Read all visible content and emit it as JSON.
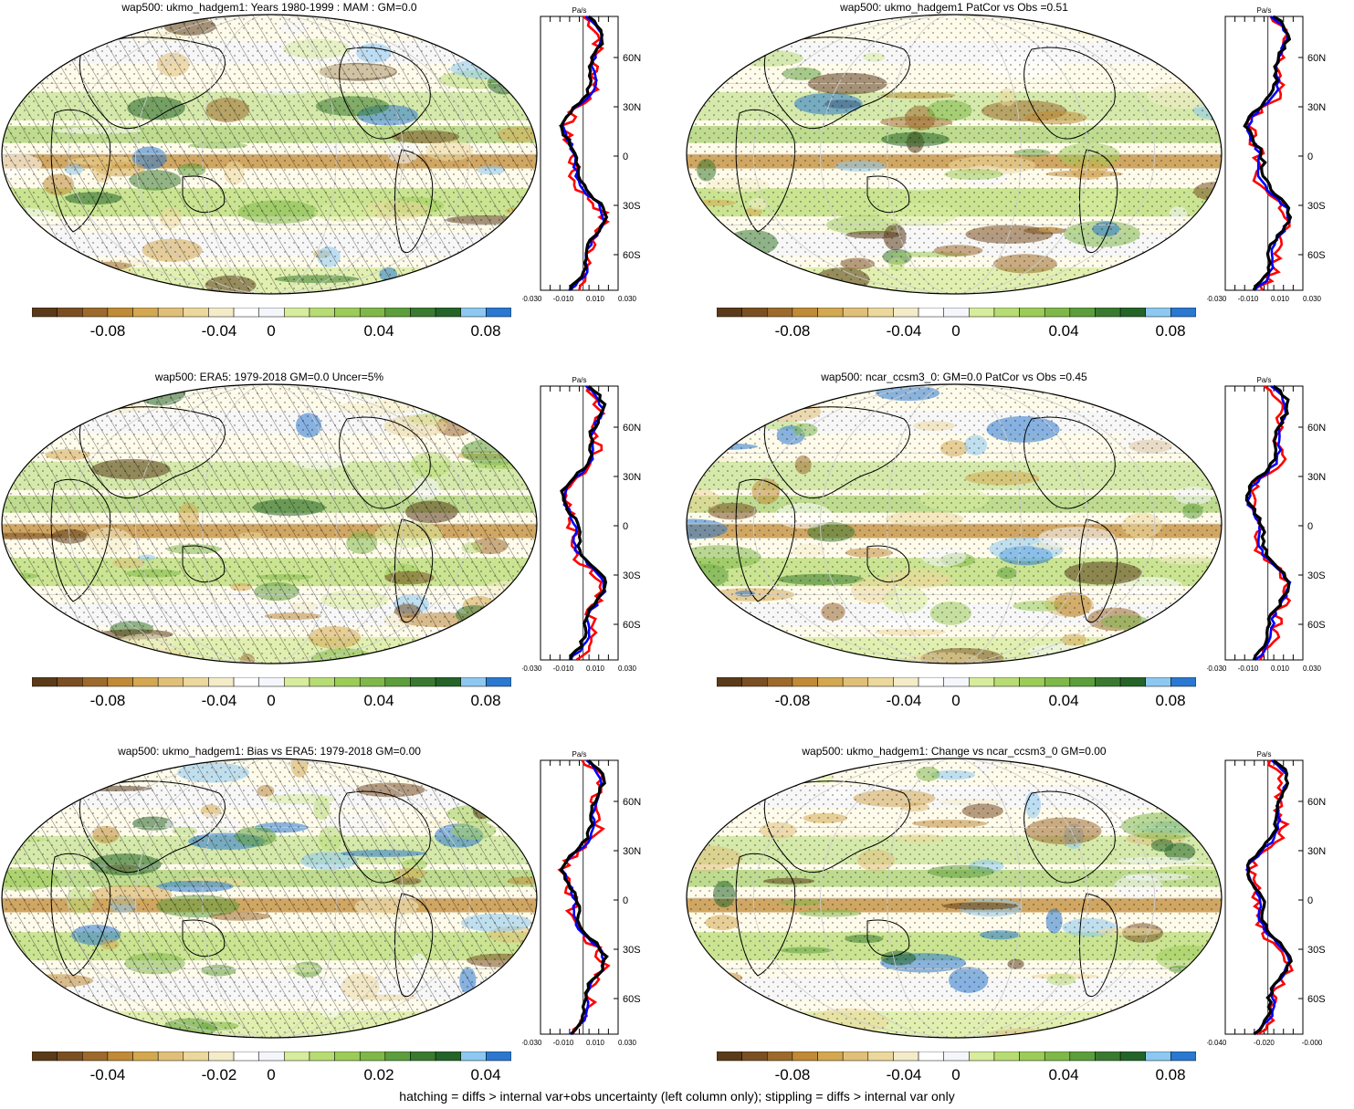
{
  "panels": [
    {
      "title": "wap500: ukmo_hadgem1: Years 1980-1999 : MAM : GM=0.0",
      "colorbar": {
        "labels": [
          "-0.08",
          "-0.04",
          "0",
          "0.04",
          "0.08"
        ]
      },
      "profile": {
        "unit": "Pa/s",
        "xticks": [
          "-0.030",
          "-0.010",
          "0.010",
          "0.030"
        ],
        "lat_labels": [
          "60N",
          "30N",
          "0",
          "30S",
          "60S"
        ]
      },
      "hatched": true
    },
    {
      "title": "wap500: ukmo_hadgem1 PatCor vs Obs =0.51",
      "colorbar": {
        "labels": [
          "-0.08",
          "-0.04",
          "0",
          "0.04",
          "0.08"
        ]
      },
      "profile": {
        "unit": "Pa/s",
        "xticks": [
          "-0.030",
          "-0.010",
          "0.010",
          "0.030"
        ],
        "lat_labels": [
          "60N",
          "30N",
          "0",
          "30S",
          "60S"
        ]
      },
      "hatched": false
    },
    {
      "title": "wap500: ERA5: 1979-2018 GM=0.0 Uncer=5%",
      "colorbar": {
        "labels": [
          "-0.08",
          "-0.04",
          "0",
          "0.04",
          "0.08"
        ]
      },
      "profile": {
        "unit": "Pa/s",
        "xticks": [
          "-0.030",
          "-0.010",
          "0.010",
          "0.030"
        ],
        "lat_labels": [
          "60N",
          "30N",
          "0",
          "30S",
          "60S"
        ]
      },
      "hatched": true
    },
    {
      "title": "wap500: ncar_ccsm3_0: GM=0.0 PatCor vs Obs =0.45",
      "colorbar": {
        "labels": [
          "-0.08",
          "-0.04",
          "0",
          "0.04",
          "0.08"
        ]
      },
      "profile": {
        "unit": "Pa/s",
        "xticks": [
          "-0.030",
          "-0.010",
          "0.010",
          "0.030"
        ],
        "lat_labels": [
          "60N",
          "30N",
          "0",
          "30S",
          "60S"
        ]
      },
      "hatched": false
    },
    {
      "title": "wap500: ukmo_hadgem1: Bias vs ERA5: 1979-2018 GM=0.00",
      "colorbar": {
        "labels": [
          "-0.04",
          "-0.02",
          "0",
          "0.02",
          "0.04"
        ]
      },
      "profile": {
        "unit": "Pa/s",
        "xticks": [
          "-0.030",
          "-0.010",
          "0.010",
          "0.030"
        ],
        "lat_labels": [
          "60N",
          "30N",
          "0",
          "30S",
          "60S"
        ]
      },
      "hatched": true
    },
    {
      "title": "wap500: ukmo_hadgem1: Change vs ncar_ccsm3_0 GM=0.00",
      "colorbar": {
        "labels": [
          "-0.08",
          "-0.04",
          "0",
          "0.04",
          "0.08"
        ]
      },
      "profile": {
        "unit": "Pa/s",
        "xticks": [
          "-0.040",
          "-0.020",
          "-0.000"
        ],
        "lat_labels": [
          "60N",
          "30N",
          "0",
          "30S",
          "60S"
        ]
      },
      "hatched": false
    }
  ],
  "colorbar_colors": [
    "#5a3a18",
    "#7a4f22",
    "#9c6a2c",
    "#c08a36",
    "#d4a850",
    "#e0c078",
    "#ecd89c",
    "#f4ecc8",
    "#ffffff",
    "#f4f6fb",
    "#d7ec9c",
    "#b8dc74",
    "#9ccc58",
    "#7fb848",
    "#5c9e3c",
    "#3a7a30",
    "#246428",
    "#8cc8f0",
    "#2a78d0"
  ],
  "legend_colors": {
    "model": "#ff0000",
    "obs": "#0000ff",
    "mean": "#000000"
  },
  "footer": "hatching = diffs > internal var+obs uncertainty (left column only); stippling = diffs > internal var only"
}
